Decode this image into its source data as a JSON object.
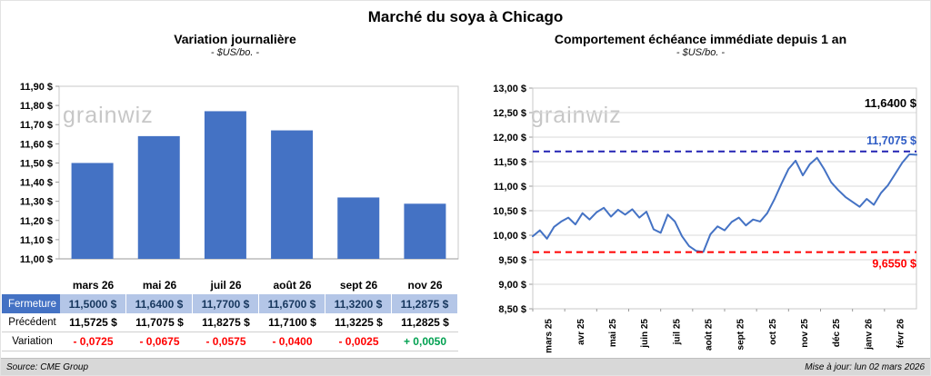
{
  "page": {
    "title": "Marché du soya à Chicago",
    "watermark": "grainwiz",
    "footer": {
      "source": "Source: CME Group",
      "updated": "Mise à jour: lun 02 mars 2026"
    }
  },
  "chart_data": [
    {
      "type": "bar",
      "title": "Variation journalière",
      "subtitle": "- $US/bo. -",
      "categories": [
        "mars 26",
        "mai 26",
        "juil 26",
        "août 26",
        "sept 26",
        "nov 26"
      ],
      "values": [
        11.5,
        11.64,
        11.77,
        11.67,
        11.32,
        11.2875
      ],
      "ylim": [
        11.0,
        11.9
      ],
      "ytick_step": 0.1,
      "ytick_labels": [
        "11,90 $",
        "11,80 $",
        "11,70 $",
        "11,60 $",
        "11,50 $",
        "11,40 $",
        "11,30 $",
        "11,20 $",
        "11,10 $",
        "11,00 $"
      ],
      "bar_color": "#4472C4",
      "grid": false
    },
    {
      "type": "line",
      "title": "Comportement échéance immédiate depuis 1 an",
      "subtitle": "- $US/bo. -",
      "x_tick_labels": [
        "mars 25",
        "avr 25",
        "mai 25",
        "juin 25",
        "juil 25",
        "août 25",
        "sept 25",
        "oct 25",
        "nov 25",
        "déc 25",
        "janv 26",
        "févr 26"
      ],
      "values": [
        9.98,
        10.1,
        9.93,
        10.17,
        10.28,
        10.36,
        10.22,
        10.45,
        10.32,
        10.47,
        10.56,
        10.38,
        10.52,
        10.42,
        10.53,
        10.36,
        10.48,
        10.12,
        10.05,
        10.42,
        10.28,
        9.98,
        9.78,
        9.68,
        9.66,
        10.02,
        10.18,
        10.1,
        10.27,
        10.36,
        10.2,
        10.32,
        10.28,
        10.45,
        10.73,
        11.05,
        11.35,
        11.52,
        11.22,
        11.45,
        11.58,
        11.35,
        11.08,
        10.92,
        10.78,
        10.68,
        10.58,
        10.74,
        10.62,
        10.86,
        11.02,
        11.25,
        11.48,
        11.65,
        11.64
      ],
      "ylim": [
        8.5,
        13.0
      ],
      "ytick_step": 0.5,
      "ytick_labels": [
        "13,00 $",
        "12,50 $",
        "12,00 $",
        "11,50 $",
        "11,00 $",
        "10,50 $",
        "10,00 $",
        "9,50 $",
        "9,00 $",
        "8,50 $"
      ],
      "line_color": "#4472C4",
      "grid": true,
      "ref_lines": [
        {
          "value": 11.7075,
          "label": "11,7075 $",
          "line_color": "#2323B4",
          "label_color": "#2E5CC5"
        },
        {
          "value": 9.655,
          "label": "9,6550 $",
          "line_color": "#FF0000",
          "label_color": "#FF0000"
        }
      ],
      "annotations": [
        {
          "text": "11,6400 $",
          "value": 11.64,
          "color": "#000000"
        }
      ]
    }
  ],
  "table": {
    "columns": [
      "mars 26",
      "mai 26",
      "juil 26",
      "août 26",
      "sept 26",
      "nov 26"
    ],
    "rows": [
      {
        "label": "Fermeture",
        "kind": "fermeture",
        "values": [
          "11,5000 $",
          "11,6400 $",
          "11,7700 $",
          "11,6700 $",
          "11,3200 $",
          "11,2875 $"
        ]
      },
      {
        "label": "Précédent",
        "kind": "precedent",
        "values": [
          "11,5725 $",
          "11,7075 $",
          "11,8275 $",
          "11,7100 $",
          "11,3225 $",
          "11,2825 $"
        ]
      },
      {
        "label": "Variation",
        "kind": "variation",
        "values": [
          "- 0,0725",
          "- 0,0675",
          "- 0,0575",
          "- 0,0400",
          "- 0,0025",
          "+ 0,0050"
        ],
        "signs": [
          "neg",
          "neg",
          "neg",
          "neg",
          "neg",
          "pos"
        ]
      }
    ]
  }
}
